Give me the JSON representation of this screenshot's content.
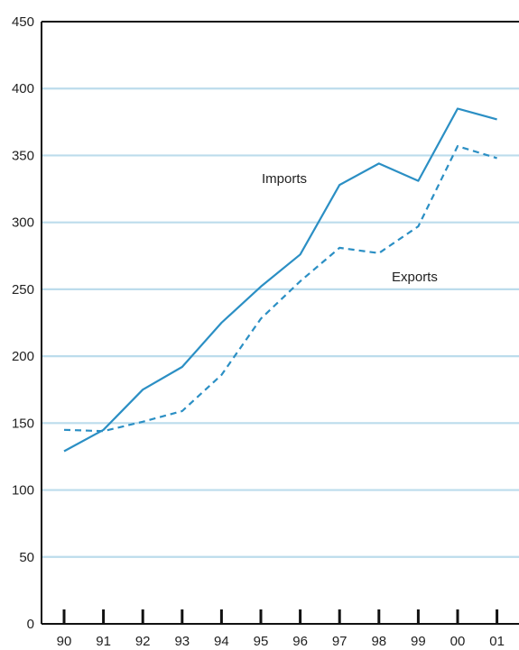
{
  "chart_data": {
    "type": "line",
    "title": "",
    "xlabel": "",
    "ylabel": "",
    "categories": [
      "90",
      "91",
      "92",
      "93",
      "94",
      "95",
      "96",
      "97",
      "98",
      "99",
      "00",
      "01"
    ],
    "ylim": [
      0,
      450
    ],
    "yticks": [
      0,
      50,
      100,
      150,
      200,
      250,
      300,
      350,
      400,
      450
    ],
    "grid": "horizontal",
    "series": [
      {
        "name": "Imports",
        "style": "solid",
        "color": "#2b8fc4",
        "values": [
          129,
          145,
          175,
          192,
          225,
          252,
          276,
          328,
          344,
          331,
          385,
          377
        ]
      },
      {
        "name": "Exports",
        "style": "dashed",
        "color": "#2b8fc4",
        "values": [
          145,
          144,
          151,
          159,
          186,
          228,
          256,
          281,
          277,
          297,
          357,
          348
        ]
      }
    ]
  },
  "colors": {
    "line": "#2b8fc4",
    "grid": "#bcdcec",
    "axis": "#111111"
  }
}
